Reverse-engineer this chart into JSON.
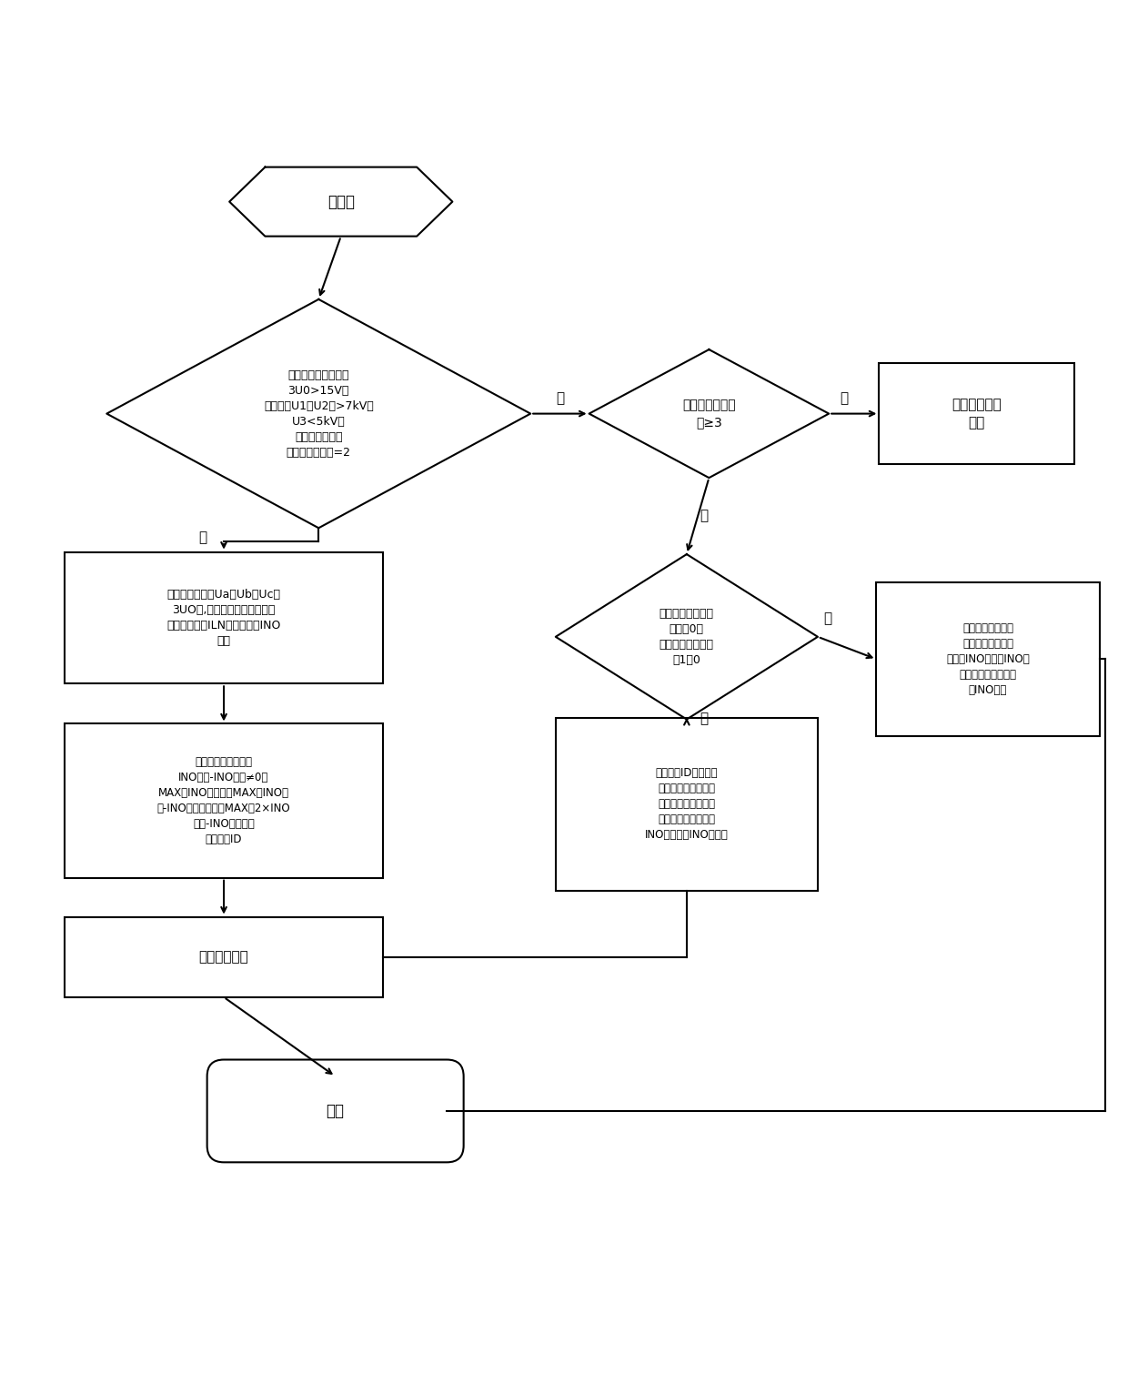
{
  "bg_color": "#ffffff",
  "line_color": "#000000",
  "text_color": "#000000",
  "font_size": 11,
  "init_text": "初始化",
  "diamond1_text": "满足三个条件之一：\n3U0>15V；\n相电压（U1，U2）>7kV且\nU3<5kV；\n母线接地动作；\n且持续计算周期=2",
  "diamond2_text": "接地故障持续周\n期≥3",
  "box_sec_text": "第二次运算子\n流程",
  "b1_text": "存储母线电压（Ua、Ub、Uc、\n3UO）,线路运行状态，故障状\n态下线路负荷ILN、零序电流INO\n放换",
  "diamond3_text": "是否接地故障持续\n周期变0；\n且有运行线路断路\n器1变0",
  "box_r_text": "存储不满足三个条\n件之一情况下且未\n填写过INO故障给INO初\n始的运行线路零序电\n流INO初始",
  "b2_text": "运行线路比较满足：\nINO故障-INO初始≠0；\nMAX（INO故障）且MAX（INO故\n障-INO初始）。否则MAX（2×INO\n故障-INO初始）。\n输出线路ID",
  "box_cl_text": "输出线路ID与断路器\n变化运行线路一致，\n标示故障线路。非故\n障运行线路零序电流\nINO初始改为INO故障值",
  "bwarn_text": "输出告警指令",
  "end_text": "结束",
  "yes_label": "是",
  "no_label": "否"
}
